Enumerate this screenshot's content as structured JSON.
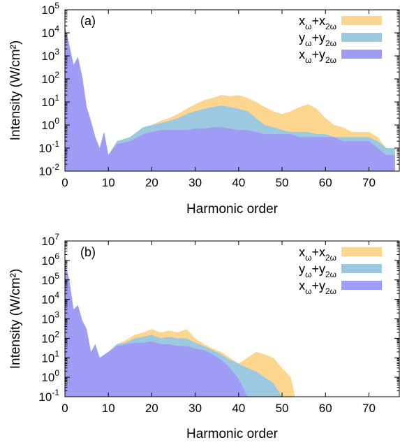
{
  "chart_data": [
    {
      "type": "area",
      "panel_label": "(a)",
      "xlabel": "Harmonic order",
      "ylabel": "Intensity (W/cm²)",
      "yscale": "log",
      "xlim": [
        0,
        77
      ],
      "ylim": [
        0.01,
        100000
      ],
      "xticks": [
        "0",
        "10",
        "20",
        "30",
        "40",
        "50",
        "60",
        "70"
      ],
      "yticks": [
        {
          "base": "10",
          "exp": "-2"
        },
        {
          "base": "10",
          "exp": "-1"
        },
        {
          "base": "10",
          "exp": "0"
        },
        {
          "base": "10",
          "exp": "1"
        },
        {
          "base": "10",
          "exp": "2"
        },
        {
          "base": "10",
          "exp": "3"
        },
        {
          "base": "10",
          "exp": "4"
        },
        {
          "base": "10",
          "exp": "5"
        }
      ],
      "legend_position": "top-right",
      "series": [
        {
          "name": "xω+x2ω",
          "label_main": [
            "x",
            "+x"
          ],
          "label_sub": [
            "ω",
            "2ω"
          ],
          "color": "#fcd68f",
          "x": [
            0,
            1,
            2,
            3,
            4,
            5,
            6,
            7,
            8,
            9,
            10,
            12,
            15,
            18,
            20,
            22,
            24,
            26,
            28,
            30,
            32,
            34,
            36,
            38,
            40,
            42,
            44,
            46,
            48,
            50,
            52,
            54,
            56,
            58,
            60,
            62,
            64,
            66,
            68,
            70,
            72,
            74,
            76
          ],
          "y": [
            20000,
            3000,
            400,
            900,
            120,
            6,
            1.5,
            0.3,
            0.1,
            0.5,
            0.05,
            0.2,
            0.3,
            0.8,
            1,
            1.5,
            2,
            3,
            5,
            8,
            12,
            15,
            20,
            18,
            20,
            15,
            10,
            6,
            4,
            3,
            4,
            6,
            8,
            5,
            2,
            1,
            0.8,
            0.5,
            0.5,
            0.5,
            0.3,
            0.1,
            0.1
          ]
        },
        {
          "name": "yω+y2ω",
          "label_main": [
            "y",
            "+y"
          ],
          "label_sub": [
            "ω",
            "2ω"
          ],
          "color": "#9cc9e0",
          "x": [
            0,
            1,
            2,
            3,
            4,
            5,
            6,
            7,
            8,
            9,
            10,
            12,
            15,
            18,
            20,
            22,
            24,
            26,
            28,
            30,
            32,
            34,
            36,
            38,
            40,
            42,
            44,
            46,
            48,
            50,
            52,
            54,
            56,
            58,
            60,
            62,
            64,
            66,
            68,
            70,
            72,
            74,
            76
          ],
          "y": [
            20000,
            3000,
            400,
            900,
            120,
            6,
            1.5,
            0.3,
            0.1,
            0.5,
            0.05,
            0.2,
            0.3,
            0.8,
            1,
            1.2,
            1.5,
            2,
            3,
            4,
            5,
            6,
            7,
            6,
            5,
            4,
            2,
            1,
            0.8,
            0.6,
            0.5,
            0.5,
            0.5,
            0.4,
            0.4,
            0.3,
            0.3,
            0.3,
            0.3,
            0.3,
            0.2,
            0.1,
            0.1
          ]
        },
        {
          "name": "xω+y2ω",
          "label_main": [
            "x",
            "+y"
          ],
          "label_sub": [
            "ω",
            "2ω"
          ],
          "color": "#9f9cf5",
          "x": [
            0,
            1,
            2,
            3,
            4,
            5,
            6,
            7,
            8,
            9,
            10,
            12,
            15,
            18,
            20,
            22,
            24,
            26,
            28,
            30,
            32,
            34,
            36,
            38,
            40,
            42,
            44,
            46,
            48,
            50,
            52,
            54,
            56,
            58,
            60,
            62,
            64,
            66,
            68,
            70,
            72,
            74,
            76
          ],
          "y": [
            20000,
            3000,
            400,
            900,
            120,
            6,
            1.5,
            0.3,
            0.1,
            0.5,
            0.05,
            0.15,
            0.2,
            0.4,
            0.5,
            0.6,
            0.6,
            0.6,
            0.6,
            0.7,
            0.7,
            0.8,
            0.8,
            0.7,
            0.6,
            0.6,
            0.5,
            0.4,
            0.4,
            0.4,
            0.4,
            0.3,
            0.3,
            0.3,
            0.3,
            0.3,
            0.2,
            0.2,
            0.2,
            0.2,
            0.1,
            0.05,
            0.05
          ]
        }
      ]
    },
    {
      "type": "area",
      "panel_label": "(b)",
      "xlabel": "Harmonic order",
      "ylabel": "Intensity (W/cm²)",
      "yscale": "log",
      "xlim": [
        0,
        77
      ],
      "ylim": [
        0.1,
        10000000
      ],
      "xticks": [
        "0",
        "10",
        "20",
        "30",
        "40",
        "50",
        "60",
        "70"
      ],
      "yticks": [
        {
          "base": "10",
          "exp": "-1"
        },
        {
          "base": "10",
          "exp": "0"
        },
        {
          "base": "10",
          "exp": "1"
        },
        {
          "base": "10",
          "exp": "2"
        },
        {
          "base": "10",
          "exp": "3"
        },
        {
          "base": "10",
          "exp": "4"
        },
        {
          "base": "10",
          "exp": "5"
        },
        {
          "base": "10",
          "exp": "6"
        },
        {
          "base": "10",
          "exp": "7"
        }
      ],
      "legend_position": "top-right",
      "series": [
        {
          "name": "xω+x2ω",
          "label_main": [
            "x",
            "+x"
          ],
          "label_sub": [
            "ω",
            "2ω"
          ],
          "color": "#fcd68f",
          "x": [
            0,
            1,
            2,
            3,
            4,
            5,
            6,
            7,
            8,
            10,
            12,
            14,
            16,
            18,
            20,
            22,
            24,
            26,
            28,
            30,
            32,
            34,
            36,
            38,
            40,
            42,
            44,
            46,
            48,
            50,
            52,
            53
          ],
          "y": [
            800000,
            100000,
            3000,
            5000,
            800,
            300,
            20,
            50,
            10,
            20,
            50,
            80,
            150,
            200,
            300,
            200,
            250,
            200,
            300,
            100,
            50,
            30,
            20,
            10,
            5,
            10,
            20,
            15,
            10,
            3,
            1,
            0.1
          ]
        },
        {
          "name": "yω+y2ω",
          "label_main": [
            "y",
            "+y"
          ],
          "label_sub": [
            "ω",
            "2ω"
          ],
          "color": "#9cc9e0",
          "x": [
            0,
            1,
            2,
            3,
            4,
            5,
            6,
            7,
            8,
            10,
            12,
            14,
            16,
            18,
            20,
            22,
            24,
            26,
            28,
            30,
            32,
            34,
            36,
            38,
            40,
            42,
            44,
            46,
            48,
            50
          ],
          "y": [
            800000,
            100000,
            3000,
            5000,
            800,
            300,
            20,
            50,
            10,
            20,
            50,
            60,
            100,
            120,
            150,
            100,
            120,
            100,
            100,
            60,
            40,
            25,
            15,
            8,
            5,
            3,
            2,
            1,
            0.5,
            0.1
          ]
        },
        {
          "name": "xω+y2ω",
          "label_main": [
            "x",
            "+y"
          ],
          "label_sub": [
            "ω",
            "2ω"
          ],
          "color": "#9f9cf5",
          "x": [
            0,
            1,
            2,
            3,
            4,
            5,
            6,
            7,
            8,
            10,
            12,
            14,
            16,
            18,
            20,
            22,
            24,
            26,
            28,
            30,
            32,
            34,
            36,
            38,
            40,
            41,
            42
          ],
          "y": [
            800000,
            100000,
            3000,
            5000,
            800,
            300,
            20,
            50,
            10,
            20,
            40,
            50,
            60,
            60,
            70,
            50,
            50,
            40,
            40,
            30,
            25,
            15,
            8,
            3,
            0.8,
            0.3,
            0.1
          ]
        }
      ]
    }
  ]
}
